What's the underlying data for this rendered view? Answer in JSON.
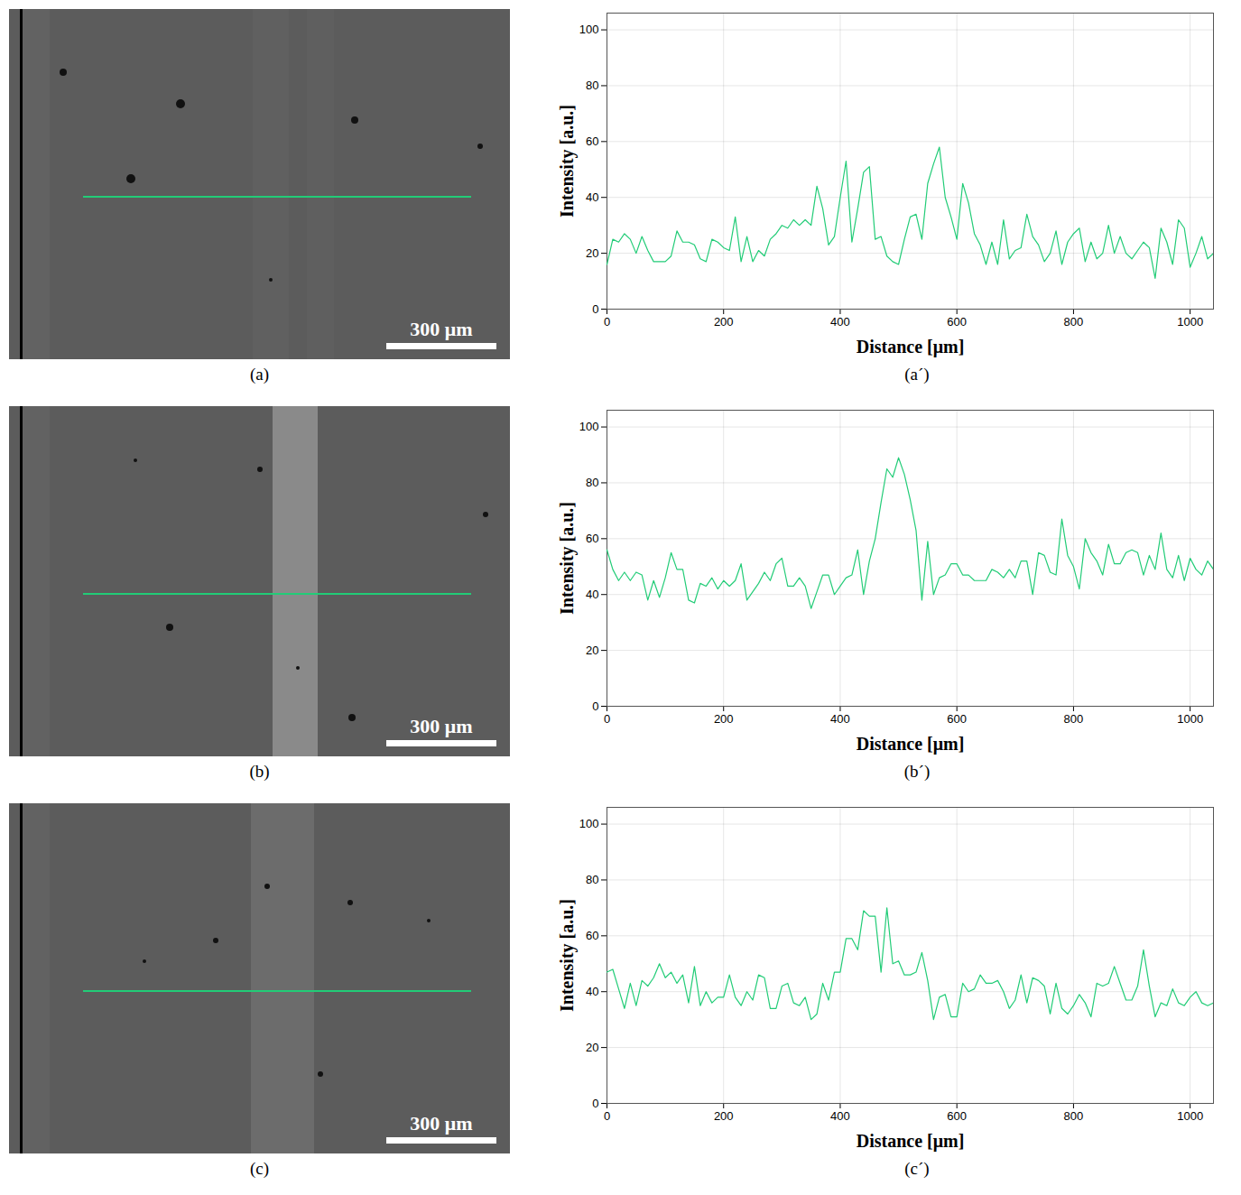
{
  "images": [
    {
      "label": "(a)",
      "scale_bar": "300 μm"
    },
    {
      "label": "(b)",
      "scale_bar": "300 μm"
    },
    {
      "label": "(c)",
      "scale_bar": "300 μm"
    }
  ],
  "chart_data": [
    {
      "type": "line",
      "label": "(a´)",
      "xlabel": "Distance [μm]",
      "ylabel": "Intensity [a.u.]",
      "color": "#22cc77",
      "xlim": [
        0,
        1040
      ],
      "ylim": [
        0,
        106
      ],
      "xticks": [
        0,
        200,
        400,
        600,
        800,
        1000
      ],
      "yticks": [
        0,
        20,
        40,
        60,
        80,
        100
      ],
      "grid": true,
      "x": [
        0,
        10,
        20,
        30,
        40,
        50,
        60,
        70,
        80,
        90,
        100,
        110,
        120,
        130,
        140,
        150,
        160,
        170,
        180,
        190,
        200,
        210,
        220,
        230,
        240,
        250,
        260,
        270,
        280,
        290,
        300,
        310,
        320,
        330,
        340,
        350,
        360,
        370,
        380,
        390,
        400,
        410,
        420,
        430,
        440,
        450,
        460,
        470,
        480,
        490,
        500,
        510,
        520,
        530,
        540,
        550,
        560,
        570,
        580,
        590,
        600,
        610,
        620,
        630,
        640,
        650,
        660,
        670,
        680,
        690,
        700,
        710,
        720,
        730,
        740,
        750,
        760,
        770,
        780,
        790,
        800,
        810,
        820,
        830,
        840,
        850,
        860,
        870,
        880,
        890,
        900,
        910,
        920,
        930,
        940,
        950,
        960,
        970,
        980,
        990,
        1000,
        1010,
        1020,
        1030,
        1040
      ],
      "values": [
        16,
        25,
        24,
        27,
        25,
        20,
        26,
        21,
        17,
        17,
        17,
        19,
        28,
        24,
        24,
        23,
        18,
        17,
        25,
        24,
        22,
        21,
        33,
        17,
        26,
        17,
        21,
        19,
        25,
        27,
        30,
        29,
        32,
        30,
        32,
        30,
        44,
        36,
        23,
        26,
        40,
        53,
        24,
        36,
        49,
        51,
        25,
        26,
        19,
        17,
        16,
        25,
        33,
        34,
        25,
        45,
        52,
        58,
        40,
        33,
        25,
        45,
        38,
        27,
        23,
        16,
        24,
        16,
        32,
        18,
        21,
        22,
        34,
        26,
        23,
        17,
        20,
        28,
        16,
        24,
        27,
        29,
        17,
        24,
        18,
        20,
        30,
        20,
        26,
        20,
        18,
        21,
        24,
        22,
        11,
        29,
        24,
        16,
        32,
        29,
        15,
        20,
        26,
        18,
        20
      ]
    },
    {
      "type": "line",
      "label": "(b´)",
      "xlabel": "Distance [μm]",
      "ylabel": "Intensity [a.u.]",
      "color": "#22cc77",
      "xlim": [
        0,
        1040
      ],
      "ylim": [
        0,
        106
      ],
      "xticks": [
        0,
        200,
        400,
        600,
        800,
        1000
      ],
      "yticks": [
        0,
        20,
        40,
        60,
        80,
        100
      ],
      "grid": true,
      "x": [
        0,
        10,
        20,
        30,
        40,
        50,
        60,
        70,
        80,
        90,
        100,
        110,
        120,
        130,
        140,
        150,
        160,
        170,
        180,
        190,
        200,
        210,
        220,
        230,
        240,
        250,
        260,
        270,
        280,
        290,
        300,
        310,
        320,
        330,
        340,
        350,
        360,
        370,
        380,
        390,
        400,
        410,
        420,
        430,
        440,
        450,
        460,
        470,
        480,
        490,
        500,
        510,
        520,
        530,
        540,
        550,
        560,
        570,
        580,
        590,
        600,
        610,
        620,
        630,
        640,
        650,
        660,
        670,
        680,
        690,
        700,
        710,
        720,
        730,
        740,
        750,
        760,
        770,
        780,
        790,
        800,
        810,
        820,
        830,
        840,
        850,
        860,
        870,
        880,
        890,
        900,
        910,
        920,
        930,
        940,
        950,
        960,
        970,
        980,
        990,
        1000,
        1010,
        1020,
        1030,
        1040
      ],
      "values": [
        56,
        49,
        45,
        48,
        45,
        48,
        47,
        38,
        45,
        39,
        46,
        55,
        49,
        49,
        38,
        37,
        44,
        43,
        46,
        42,
        45,
        43,
        45,
        51,
        38,
        41,
        44,
        48,
        45,
        51,
        53,
        43,
        43,
        46,
        43,
        35,
        41,
        47,
        47,
        40,
        43,
        46,
        47,
        56,
        40,
        52,
        60,
        73,
        85,
        82,
        89,
        83,
        74,
        63,
        38,
        59,
        40,
        46,
        47,
        51,
        51,
        47,
        47,
        45,
        45,
        45,
        49,
        48,
        46,
        49,
        46,
        52,
        52,
        40,
        55,
        54,
        48,
        47,
        67,
        54,
        50,
        42,
        60,
        55,
        52,
        47,
        58,
        51,
        51,
        55,
        56,
        55,
        47,
        54,
        49,
        62,
        49,
        46,
        54,
        45,
        53,
        49,
        47,
        52,
        49
      ]
    },
    {
      "type": "line",
      "label": "(c´)",
      "xlabel": "Distance [μm]",
      "ylabel": "Intensity [a.u.]",
      "color": "#22cc77",
      "xlim": [
        0,
        1040
      ],
      "ylim": [
        0,
        106
      ],
      "xticks": [
        0,
        200,
        400,
        600,
        800,
        1000
      ],
      "yticks": [
        0,
        20,
        40,
        60,
        80,
        100
      ],
      "grid": true,
      "x": [
        0,
        10,
        20,
        30,
        40,
        50,
        60,
        70,
        80,
        90,
        100,
        110,
        120,
        130,
        140,
        150,
        160,
        170,
        180,
        190,
        200,
        210,
        220,
        230,
        240,
        250,
        260,
        270,
        280,
        290,
        300,
        310,
        320,
        330,
        340,
        350,
        360,
        370,
        380,
        390,
        400,
        410,
        420,
        430,
        440,
        450,
        460,
        470,
        480,
        490,
        500,
        510,
        520,
        530,
        540,
        550,
        560,
        570,
        580,
        590,
        600,
        610,
        620,
        630,
        640,
        650,
        660,
        670,
        680,
        690,
        700,
        710,
        720,
        730,
        740,
        750,
        760,
        770,
        780,
        790,
        800,
        810,
        820,
        830,
        840,
        850,
        860,
        870,
        880,
        890,
        900,
        910,
        920,
        930,
        940,
        950,
        960,
        970,
        980,
        990,
        1000,
        1010,
        1020,
        1030,
        1040
      ],
      "values": [
        47,
        48,
        41,
        34,
        43,
        35,
        44,
        42,
        45,
        50,
        45,
        47,
        43,
        46,
        36,
        49,
        35,
        40,
        36,
        38,
        38,
        46,
        38,
        35,
        40,
        37,
        46,
        45,
        34,
        34,
        42,
        43,
        36,
        35,
        38,
        30,
        32,
        43,
        37,
        47,
        47,
        59,
        59,
        55,
        69,
        67,
        67,
        47,
        70,
        50,
        51,
        46,
        46,
        47,
        54,
        44,
        30,
        38,
        39,
        31,
        31,
        43,
        40,
        41,
        46,
        43,
        43,
        44,
        40,
        34,
        37,
        46,
        36,
        45,
        44,
        42,
        32,
        43,
        34,
        32,
        35,
        39,
        36,
        31,
        43,
        42,
        43,
        49,
        43,
        37,
        37,
        42,
        55,
        42,
        31,
        36,
        35,
        41,
        36,
        35,
        38,
        40,
        36,
        35,
        36
      ]
    }
  ]
}
